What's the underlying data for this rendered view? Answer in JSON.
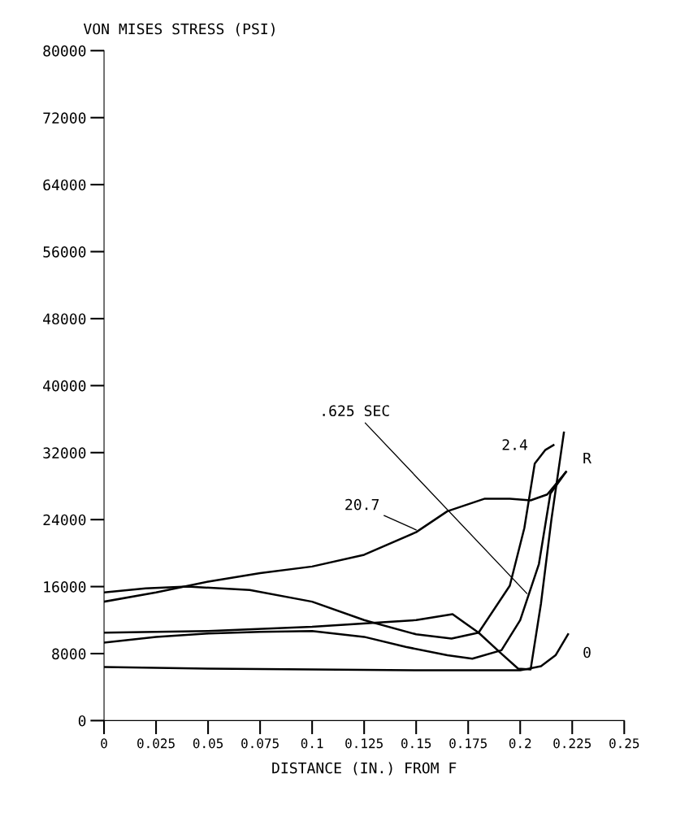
{
  "chart_data": {
    "type": "line",
    "ylabel": "VON MISES STRESS (PSI)",
    "xlabel": "DISTANCE (IN.) FROM F",
    "xlim": [
      0,
      0.25
    ],
    "xticks": [
      0,
      0.025,
      0.05,
      0.075,
      0.1,
      0.125,
      0.15,
      0.175,
      0.2,
      0.225,
      0.25
    ],
    "ylim": [
      0,
      80000
    ],
    "yticks": [
      0,
      8000,
      16000,
      24000,
      {
        "value": 32000,
        "label": "32000"
      },
      40000,
      48000,
      56000,
      64000,
      {
        "value": 72000,
        "label": "72000"
      },
      80000
    ],
    "grid": false,
    "legend": false,
    "marker": "none",
    "line_style": "solid",
    "series": [
      {
        "name": ".625 SEC",
        "color": "#000000",
        "x": [
          0,
          0.025,
          0.05,
          0.075,
          0.1,
          0.125,
          0.145,
          0.165,
          0.177,
          0.191,
          0.2,
          0.209,
          0.2145,
          0.222
        ],
        "values": [
          9300,
          10000,
          10400,
          10600,
          10700,
          10000,
          8800,
          7800,
          7400,
          8400,
          12000,
          18700,
          27100,
          29700
        ]
      },
      {
        "name": "2.4",
        "color": "#000000",
        "x": [
          0,
          0.02,
          0.04,
          0.07,
          0.1,
          0.125,
          0.15,
          0.167,
          0.18,
          0.195,
          0.202,
          0.207,
          0.212,
          0.216
        ],
        "values": [
          15300,
          15800,
          16000,
          15600,
          14200,
          12000,
          10300,
          9800,
          10500,
          16100,
          23000,
          30700,
          32300,
          32900
        ]
      },
      {
        "name": "20.7",
        "color": "#000000",
        "x": [
          0,
          0.025,
          0.05,
          0.075,
          0.1,
          0.125,
          0.15,
          0.165,
          0.183,
          0.195,
          0.205,
          0.213,
          0.222
        ],
        "values": [
          14200,
          15300,
          16600,
          17600,
          18400,
          19800,
          22500,
          25000,
          26500,
          26500,
          26300,
          27000,
          29700
        ]
      },
      {
        "name": "R",
        "color": "#000000",
        "x": [
          0,
          0.05,
          0.1,
          0.15,
          0.1675,
          0.18,
          0.19,
          0.199,
          0.205,
          0.21,
          0.215,
          0.221
        ],
        "values": [
          10500,
          10700,
          11200,
          12000,
          12700,
          10500,
          8200,
          6200,
          6100,
          14000,
          24000,
          34400
        ]
      },
      {
        "name": "0",
        "color": "#000000",
        "x": [
          0,
          0.05,
          0.1,
          0.15,
          0.2,
          0.21,
          0.217,
          0.223
        ],
        "values": [
          6400,
          6200,
          6100,
          6000,
          6000,
          6500,
          7800,
          10300
        ]
      }
    ]
  }
}
